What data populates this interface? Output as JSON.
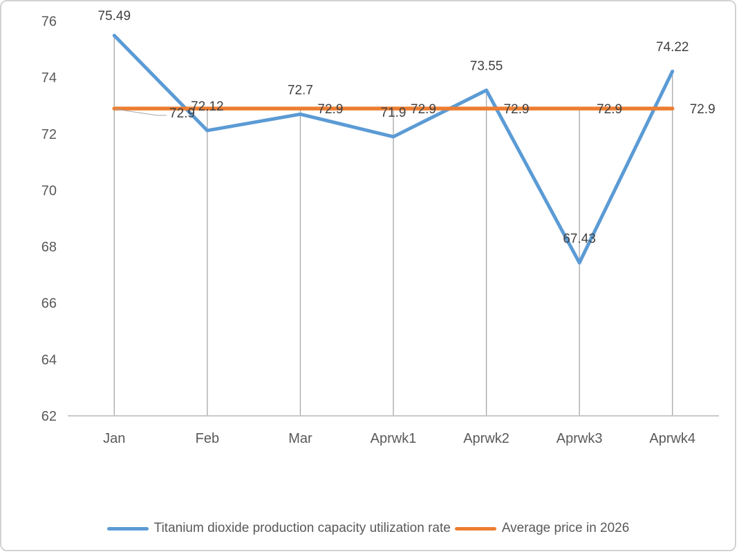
{
  "chart_data": {
    "type": "line",
    "title": "",
    "categories": [
      "Jan",
      "Feb",
      "Mar",
      "Aprwk1",
      "Aprwk2",
      "Aprwk3",
      "Aprwk4"
    ],
    "series": [
      {
        "name": "Titanium dioxide production capacity utilization rate",
        "color": "#5B9BD5",
        "values": [
          75.49,
          72.12,
          72.7,
          71.9,
          73.55,
          67.43,
          74.22
        ],
        "data_labels": [
          "75.49",
          "72.12",
          "72.7",
          "71.9",
          "73.55",
          "67.43",
          "74.22"
        ]
      },
      {
        "name": "Average price in 2026",
        "color": "#ED7D31",
        "values": [
          72.9,
          72.9,
          72.9,
          72.9,
          72.9,
          72.9,
          72.9
        ],
        "data_labels": [
          "72.9",
          null,
          "72.9",
          "72.9",
          "72.9",
          "72.9",
          "72.9"
        ],
        "first_label_moved_with_leader": true
      }
    ],
    "ylim": [
      62,
      76
    ],
    "yticks": [
      62,
      64,
      66,
      68,
      70,
      72,
      74,
      76
    ],
    "grid": "vertical-drop-lines",
    "legend_position": "bottom"
  },
  "colors": {
    "axis_line": "#c9c9c9",
    "drop_line": "#a6a6a6",
    "leader_line": "#a6a6a6",
    "tick_text": "#595959",
    "data_label_text": "#404040",
    "background": "#ffffff",
    "frame_border": "#d2d2d2"
  }
}
